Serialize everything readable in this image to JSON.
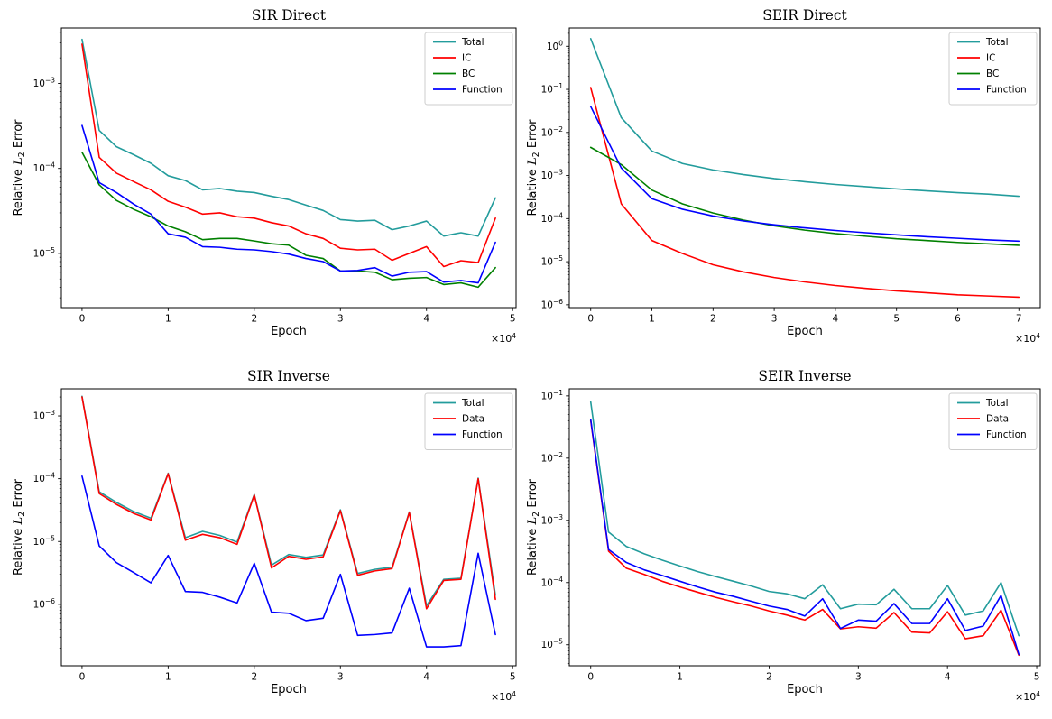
{
  "figure": {
    "background": "#ffffff"
  },
  "style": {
    "axis_color": "#000000",
    "text_color": "#000000",
    "teal": "#239c9c",
    "red": "#ff0000",
    "green": "#008000",
    "blue": "#0000ff",
    "legend_border": "#cccccc",
    "legend_bg": "#ffffff"
  },
  "chart_data": [
    {
      "id": "sir-direct",
      "type": "line",
      "title": "SIR Direct",
      "xlabel": "Epoch",
      "ylabel": {
        "pre": "Relative ",
        "var": "L",
        "sub": "2",
        "post": " Error"
      },
      "x_offset": {
        "base": "×10",
        "exp": "4"
      },
      "x_unit": 10000,
      "y_scale": "log",
      "grid": false,
      "xlim": [
        -0.24,
        5.04
      ],
      "ylim": [
        2.3e-06,
        0.0045
      ],
      "x_ticks": [
        0,
        1,
        2,
        3,
        4,
        5
      ],
      "y_tick_exponents": [
        -3,
        -4,
        -5
      ],
      "legend_position": "top-right",
      "x": [
        0,
        0.2,
        0.4,
        0.6,
        0.8,
        1.0,
        1.2,
        1.4,
        1.6,
        1.8,
        2.0,
        2.2,
        2.4,
        2.6,
        2.8,
        3.0,
        3.2,
        3.4,
        3.6,
        3.8,
        4.0,
        4.2,
        4.4,
        4.6,
        4.8
      ],
      "series": [
        {
          "name": "Total",
          "color": "#239c9c",
          "values": [
            0.0033,
            0.00028,
            0.00018,
            0.000145,
            0.000115,
            8.2e-05,
            7.2e-05,
            5.6e-05,
            5.8e-05,
            5.4e-05,
            5.2e-05,
            4.7e-05,
            4.3e-05,
            3.7e-05,
            3.2e-05,
            2.5e-05,
            2.4e-05,
            2.45e-05,
            1.9e-05,
            2.1e-05,
            2.4e-05,
            1.6e-05,
            1.75e-05,
            1.6e-05,
            4.5e-05
          ]
        },
        {
          "name": "IC",
          "color": "#ff0000",
          "values": [
            0.0029,
            0.000135,
            8.8e-05,
            7e-05,
            5.6e-05,
            4.1e-05,
            3.5e-05,
            2.9e-05,
            3e-05,
            2.7e-05,
            2.6e-05,
            2.3e-05,
            2.1e-05,
            1.7e-05,
            1.5e-05,
            1.15e-05,
            1.1e-05,
            1.12e-05,
            8.3e-06,
            1e-05,
            1.2e-05,
            7e-06,
            8.2e-06,
            7.8e-06,
            2.6e-05
          ]
        },
        {
          "name": "BC",
          "color": "#008000",
          "values": [
            0.000155,
            6.4e-05,
            4.2e-05,
            3.3e-05,
            2.7e-05,
            2.1e-05,
            1.8e-05,
            1.45e-05,
            1.5e-05,
            1.5e-05,
            1.4e-05,
            1.3e-05,
            1.25e-05,
            9.5e-06,
            8.7e-06,
            6.2e-06,
            6.2e-06,
            6e-06,
            4.9e-06,
            5.1e-06,
            5.2e-06,
            4.3e-06,
            4.5e-06,
            4e-06,
            6.8e-06
          ]
        },
        {
          "name": "Function",
          "color": "#0000ff",
          "values": [
            0.00032,
            6.8e-05,
            5.2e-05,
            3.8e-05,
            2.9e-05,
            1.7e-05,
            1.55e-05,
            1.2e-05,
            1.18e-05,
            1.12e-05,
            1.1e-05,
            1.05e-05,
            9.8e-06,
            8.7e-06,
            8e-06,
            6.2e-06,
            6.3e-06,
            6.8e-06,
            5.4e-06,
            6e-06,
            6.1e-06,
            4.6e-06,
            4.8e-06,
            4.5e-06,
            1.35e-05
          ]
        }
      ]
    },
    {
      "id": "seir-direct",
      "type": "line",
      "title": "SEIR Direct",
      "xlabel": "Epoch",
      "ylabel": {
        "pre": "Relative ",
        "var": "L",
        "sub": "2",
        "post": " Error"
      },
      "x_offset": {
        "base": "×10",
        "exp": "4"
      },
      "x_unit": 10000,
      "y_scale": "log",
      "grid": false,
      "xlim": [
        -0.35,
        7.35
      ],
      "ylim": [
        8.6e-07,
        2.66
      ],
      "x_ticks": [
        0,
        1,
        2,
        3,
        4,
        5,
        6,
        7
      ],
      "y_tick_exponents": [
        0,
        -1,
        -2,
        -3,
        -4,
        -5,
        -6
      ],
      "legend_position": "top-right",
      "x": [
        0,
        0.5,
        1.0,
        1.5,
        2.0,
        2.5,
        3.0,
        3.5,
        4.0,
        4.5,
        5.0,
        5.5,
        6.0,
        6.5,
        7.0
      ],
      "series": [
        {
          "name": "Total",
          "color": "#239c9c",
          "values": [
            1.5,
            0.022,
            0.0037,
            0.0019,
            0.00135,
            0.00105,
            0.00085,
            0.00072,
            0.00062,
            0.00055,
            0.00049,
            0.00044,
            0.0004,
            0.00037,
            0.00033
          ]
        },
        {
          "name": "IC",
          "color": "#ff0000",
          "values": [
            0.11,
            0.00022,
            3.1e-05,
            1.55e-05,
            8.5e-06,
            5.8e-06,
            4.3e-06,
            3.4e-06,
            2.8e-06,
            2.4e-06,
            2.1e-06,
            1.9e-06,
            1.7e-06,
            1.6e-06,
            1.5e-06
          ]
        },
        {
          "name": "BC",
          "color": "#008000",
          "values": [
            0.0045,
            0.0018,
            0.00046,
            0.00022,
            0.000135,
            9.2e-05,
            6.8e-05,
            5.4e-05,
            4.5e-05,
            3.9e-05,
            3.4e-05,
            3.1e-05,
            2.8e-05,
            2.6e-05,
            2.4e-05
          ]
        },
        {
          "name": "Function",
          "color": "#0000ff",
          "values": [
            0.04,
            0.0015,
            0.00029,
            0.000165,
            0.000115,
            8.8e-05,
            7.2e-05,
            6.1e-05,
            5.3e-05,
            4.7e-05,
            4.2e-05,
            3.8e-05,
            3.5e-05,
            3.2e-05,
            3e-05
          ]
        }
      ]
    },
    {
      "id": "sir-inverse",
      "type": "line",
      "title": "SIR Inverse",
      "xlabel": "Epoch",
      "ylabel": {
        "pre": "Relative ",
        "var": "L",
        "sub": "2",
        "post": " Error"
      },
      "x_offset": {
        "base": "×10",
        "exp": "4"
      },
      "x_unit": 10000,
      "y_scale": "log",
      "grid": false,
      "xlim": [
        -0.24,
        5.04
      ],
      "ylim": [
        1.05e-07,
        0.0027
      ],
      "x_ticks": [
        0,
        1,
        2,
        3,
        4,
        5
      ],
      "y_tick_exponents": [
        -3,
        -4,
        -5,
        -6
      ],
      "legend_position": "top-right",
      "x": [
        0,
        0.2,
        0.4,
        0.6,
        0.8,
        1.0,
        1.2,
        1.4,
        1.6,
        1.8,
        2.0,
        2.2,
        2.4,
        2.6,
        2.8,
        3.0,
        3.2,
        3.4,
        3.6,
        3.8,
        4.0,
        4.2,
        4.4,
        4.6,
        4.8
      ],
      "series": [
        {
          "name": "Total",
          "color": "#239c9c",
          "values": [
            0.00205,
            6.2e-05,
            4.2e-05,
            3e-05,
            2.35e-05,
            0.000122,
            1.15e-05,
            1.45e-05,
            1.25e-05,
            9.8e-06,
            5.6e-05,
            4.2e-06,
            6.2e-06,
            5.6e-06,
            6.1e-06,
            3.2e-05,
            3.1e-06,
            3.6e-06,
            3.9e-06,
            2.95e-05,
            9.5e-07,
            2.5e-06,
            2.6e-06,
            0.000102,
            1.4e-06
          ]
        },
        {
          "name": "Data",
          "color": "#ff0000",
          "values": [
            0.002,
            5.8e-05,
            3.9e-05,
            2.8e-05,
            2.2e-05,
            0.00012,
            1.05e-05,
            1.3e-05,
            1.15e-05,
            9e-06,
            5.5e-05,
            3.8e-06,
            5.8e-06,
            5.2e-06,
            5.7e-06,
            3.1e-05,
            2.9e-06,
            3.4e-06,
            3.7e-06,
            2.9e-05,
            8.5e-07,
            2.4e-06,
            2.5e-06,
            0.0001,
            1.2e-06
          ]
        },
        {
          "name": "Function",
          "color": "#0000ff",
          "values": [
            0.00011,
            8.5e-06,
            4.6e-06,
            3.2e-06,
            2.2e-06,
            6e-06,
            1.6e-06,
            1.55e-06,
            1.3e-06,
            1.05e-06,
            4.5e-06,
            7.5e-07,
            7.2e-07,
            5.5e-07,
            6e-07,
            3e-06,
            3.2e-07,
            3.3e-07,
            3.5e-07,
            1.8e-06,
            2.1e-07,
            2.1e-07,
            2.2e-07,
            6.5e-06,
            3.3e-07
          ]
        }
      ]
    },
    {
      "id": "seir-inverse",
      "type": "line",
      "title": "SEIR Inverse",
      "xlabel": "Epoch",
      "ylabel": {
        "pre": "Relative ",
        "var": "L",
        "sub": "2",
        "post": " Error"
      },
      "x_offset": {
        "base": "×10",
        "exp": "4"
      },
      "x_unit": 10000,
      "y_scale": "log",
      "grid": false,
      "xlim": [
        -0.24,
        5.04
      ],
      "ylim": [
        4.6e-06,
        0.13
      ],
      "x_ticks": [
        0,
        1,
        2,
        3,
        4,
        5
      ],
      "y_tick_exponents": [
        -1,
        -2,
        -3,
        -4,
        -5
      ],
      "legend_position": "top-right",
      "x": [
        0,
        0.2,
        0.4,
        0.6,
        0.8,
        1.0,
        1.2,
        1.4,
        1.6,
        1.8,
        2.0,
        2.2,
        2.4,
        2.6,
        2.8,
        3.0,
        3.2,
        3.4,
        3.6,
        3.8,
        4.0,
        4.2,
        4.4,
        4.6,
        4.8
      ],
      "series": [
        {
          "name": "Total",
          "color": "#239c9c",
          "values": [
            0.08,
            0.00065,
            0.00038,
            0.00029,
            0.00023,
            0.000185,
            0.00015,
            0.000125,
            0.000105,
            8.8e-05,
            7.2e-05,
            6.6e-05,
            5.5e-05,
            9.2e-05,
            3.8e-05,
            4.5e-05,
            4.4e-05,
            7.8e-05,
            3.8e-05,
            3.8e-05,
            9e-05,
            3e-05,
            3.5e-05,
            0.0001,
            1.4e-05
          ]
        },
        {
          "name": "Data",
          "color": "#ff0000",
          "values": [
            0.04,
            0.00032,
            0.00017,
            0.000135,
            0.000105,
            8.5e-05,
            7e-05,
            5.8e-05,
            4.9e-05,
            4.2e-05,
            3.5e-05,
            3e-05,
            2.5e-05,
            3.7e-05,
            1.8e-05,
            1.95e-05,
            1.85e-05,
            3.3e-05,
            1.6e-05,
            1.55e-05,
            3.4e-05,
            1.25e-05,
            1.4e-05,
            3.6e-05,
            6.8e-06
          ]
        },
        {
          "name": "Function",
          "color": "#0000ff",
          "values": [
            0.042,
            0.00034,
            0.00021,
            0.00016,
            0.00013,
            0.000105,
            8.5e-05,
            7e-05,
            6e-05,
            5e-05,
            4.2e-05,
            3.7e-05,
            2.9e-05,
            5.5e-05,
            1.83e-05,
            2.5e-05,
            2.4e-05,
            4.6e-05,
            2.2e-05,
            2.2e-05,
            5.5e-05,
            1.7e-05,
            2e-05,
            6.2e-05,
            7e-06
          ]
        }
      ]
    }
  ]
}
